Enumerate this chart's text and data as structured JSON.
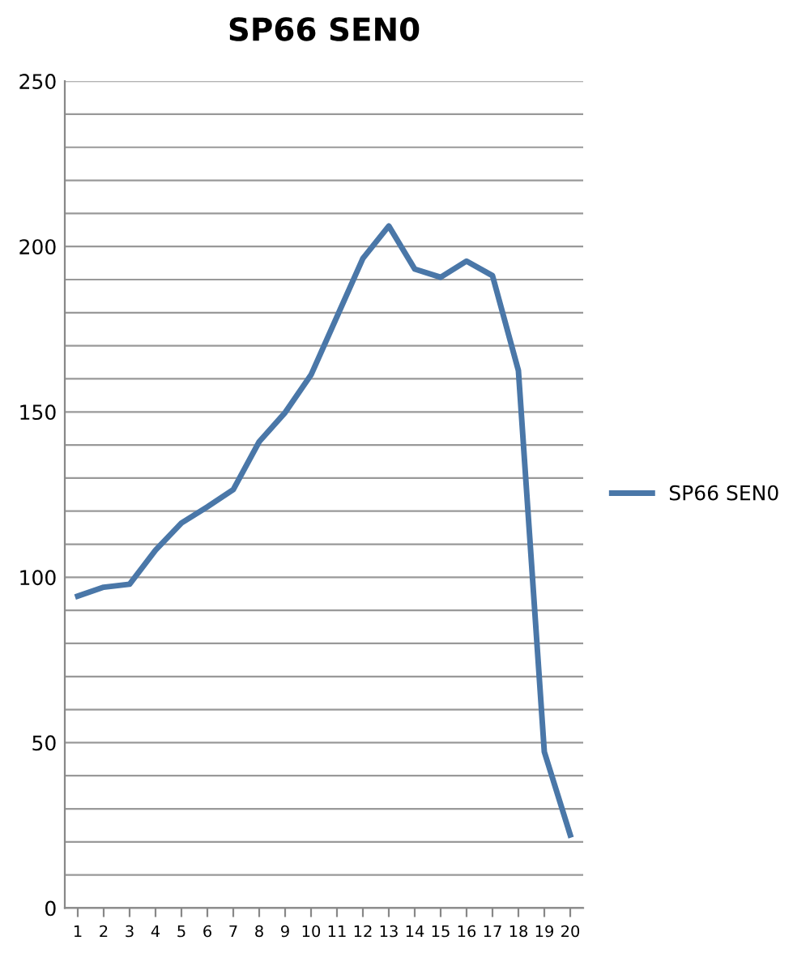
{
  "chart_data": {
    "type": "line",
    "title": "SP66 SEN0",
    "categories": [
      "1",
      "2",
      "3",
      "4",
      "5",
      "6",
      "7",
      "8",
      "9",
      "10",
      "11",
      "12",
      "13",
      "14",
      "15",
      "16",
      "17",
      "18",
      "19",
      "20"
    ],
    "series": [
      {
        "name": "SP66 SEN0",
        "color": "#4a77a8",
        "values": [
          94.3,
          97,
          97.9,
          108.2,
          116.4,
          121.3,
          126.5,
          141,
          149.8,
          161.2,
          178.8,
          196.4,
          206.2,
          193.2,
          190.7,
          195.6,
          191.2,
          162.5,
          47.2,
          22.1
        ]
      }
    ],
    "ylim": [
      0,
      250
    ],
    "yticks": [
      0,
      {
        "value": 10,
        "label": null
      },
      {
        "value": 20,
        "label": null
      },
      {
        "value": 30,
        "label": null
      },
      {
        "value": 40,
        "label": null
      },
      50,
      {
        "value": 60,
        "label": null
      },
      {
        "value": 70,
        "label": null
      },
      {
        "value": 80,
        "label": null
      },
      {
        "value": 90,
        "label": null
      },
      100,
      {
        "value": 110,
        "label": null
      },
      {
        "value": 120,
        "label": null
      },
      {
        "value": 130,
        "label": null
      },
      {
        "value": 140,
        "label": null
      },
      150,
      {
        "value": 160,
        "label": null
      },
      {
        "value": 170,
        "label": null
      },
      {
        "value": 180,
        "label": null
      },
      {
        "value": 190,
        "label": null
      },
      200,
      {
        "value": 210,
        "label": null
      },
      {
        "value": 220,
        "label": null
      },
      {
        "value": 230,
        "label": null
      },
      {
        "value": 240,
        "label": null
      },
      250
    ],
    "grid": "y",
    "legend": "right",
    "marker": "none",
    "line_style": "solid"
  }
}
